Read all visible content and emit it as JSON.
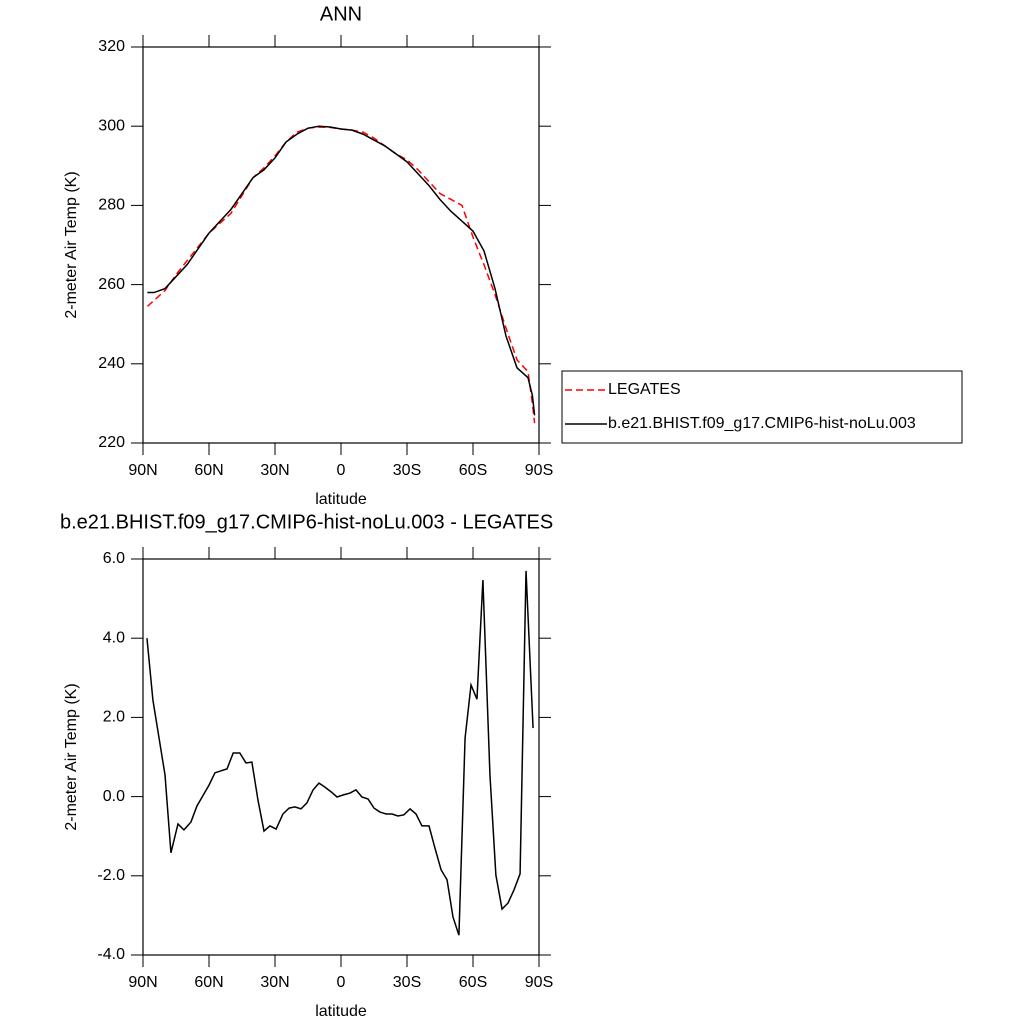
{
  "chart_data": [
    {
      "type": "line",
      "title": "ANN",
      "xlabel": "latitude",
      "ylabel": "2-meter Air Temp (K)",
      "x": [
        88,
        85,
        80,
        75,
        70,
        65,
        60,
        55,
        50,
        45,
        40,
        35,
        30,
        25,
        20,
        15,
        10,
        5,
        0,
        -5,
        -10,
        -15,
        -20,
        -25,
        -30,
        -35,
        -40,
        -45,
        -50,
        -55,
        -60,
        -65,
        -70,
        -75,
        -80,
        -85,
        -87,
        -88
      ],
      "series": [
        {
          "name": "LEGATES",
          "color": "#ff0000",
          "line_style": "dashed",
          "values": [
            254.5,
            256,
            258.5,
            262.5,
            266,
            269.5,
            273,
            275.5,
            278,
            282.5,
            287,
            289.5,
            292.5,
            296,
            298.5,
            299.5,
            299.8,
            299.7,
            299.3,
            299,
            298.5,
            297,
            295,
            293,
            291.5,
            289,
            286,
            283,
            281.5,
            280,
            272,
            265,
            257.5,
            249,
            241,
            238,
            230,
            225
          ]
        },
        {
          "name": "b.e21.BHIST.f09_g17.CMIP6-hist-noLu.003",
          "color": "#000000",
          "line_style": "solid",
          "values": [
            258,
            258,
            259,
            262,
            265,
            269,
            273,
            276,
            279,
            283,
            287,
            289,
            292,
            296,
            298,
            299.5,
            300,
            299.8,
            299.3,
            299,
            298,
            296.5,
            295,
            293,
            291,
            288,
            285,
            281.5,
            278.5,
            276,
            273.5,
            268.5,
            259,
            247,
            239,
            236.5,
            232,
            227
          ]
        }
      ],
      "xlim": [
        90,
        -90
      ],
      "xticks": [
        {
          "value": 90,
          "label": "90N"
        },
        {
          "value": 60,
          "label": "60N"
        },
        {
          "value": 30,
          "label": "30N"
        },
        0,
        {
          "value": -30,
          "label": "30S"
        },
        {
          "value": -60,
          "label": "60S"
        },
        {
          "value": -90,
          "label": "90S"
        }
      ],
      "ylim": [
        220,
        320
      ],
      "yticks": [
        220,
        240,
        260,
        280,
        300,
        320
      ],
      "legend": "right"
    },
    {
      "type": "line",
      "title": "b.e21.BHIST.f09_g17.CMIP6-hist-noLu.003 - LEGATES",
      "xlabel": "latitude",
      "ylabel": "2-meter Air Temp (K)",
      "x": [
        88.2,
        85.5,
        80,
        77.3,
        74.1,
        71.4,
        68.2,
        65.5,
        60,
        57.3,
        51.8,
        49,
        46,
        43.2,
        40.5,
        37.7,
        35,
        32.3,
        29.5,
        26.4,
        23.6,
        20.9,
        18.2,
        15.5,
        12.7,
        10,
        7.3,
        4.5,
        1.8,
        -0.9,
        -4.1,
        -6.8,
        -9.5,
        -12.3,
        -15,
        -17.7,
        -20.5,
        -23.2,
        -25.9,
        -28.6,
        -31.4,
        -34.1,
        -36.8,
        -40,
        -42.7,
        -45.5,
        -48.2,
        -50.9,
        -53.6,
        -56.4,
        -59.1,
        -61.8,
        -64.5,
        -67.7,
        -70.4,
        -73.2,
        -75.9,
        -78.6,
        -81.4,
        -84.1,
        -87.3
      ],
      "series": [
        {
          "name": "b.e21.BHIST.f09_g17.CMIP6-hist-noLu.003 - LEGATES",
          "color": "#000000",
          "line_style": "solid",
          "values": [
            4.0,
            2.44,
            0.55,
            -1.42,
            -0.69,
            -0.84,
            -0.64,
            -0.24,
            0.29,
            0.6,
            0.7,
            1.1,
            1.1,
            0.85,
            0.87,
            -0.1,
            -0.87,
            -0.74,
            -0.82,
            -0.44,
            -0.29,
            -0.26,
            -0.31,
            -0.16,
            0.17,
            0.34,
            0.24,
            0.12,
            -0.01,
            0.04,
            0.09,
            0.17,
            -0.01,
            -0.06,
            -0.29,
            -0.39,
            -0.44,
            -0.44,
            -0.49,
            -0.46,
            -0.31,
            -0.44,
            -0.74,
            -0.74,
            -1.3,
            -1.85,
            -2.1,
            -3.04,
            -3.5,
            1.48,
            2.82,
            2.46,
            5.47,
            0.55,
            -1.98,
            -2.84,
            -2.69,
            -2.36,
            -1.95,
            5.7,
            1.73
          ]
        }
      ],
      "xlim": [
        90,
        -90
      ],
      "xticks": [
        {
          "value": 90,
          "label": "90N"
        },
        {
          "value": 60,
          "label": "60N"
        },
        {
          "value": 30,
          "label": "30N"
        },
        0,
        {
          "value": -30,
          "label": "30S"
        },
        {
          "value": -60,
          "label": "60S"
        },
        {
          "value": -90,
          "label": "90S"
        }
      ],
      "ylim": [
        -4,
        6
      ],
      "yticks": [
        {
          "value": -4,
          "label": "-4.0"
        },
        {
          "value": -2,
          "label": "-2.0"
        },
        {
          "value": 0,
          "label": "0.0"
        },
        {
          "value": 2,
          "label": "2.0"
        },
        {
          "value": 4,
          "label": "4.0"
        },
        {
          "value": 6,
          "label": "6.0"
        }
      ]
    }
  ]
}
